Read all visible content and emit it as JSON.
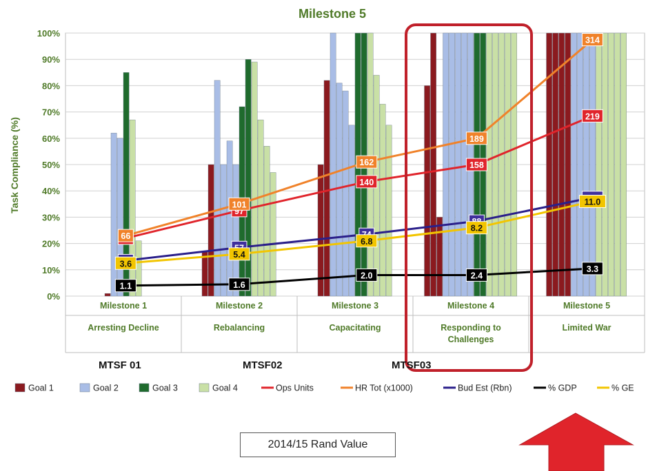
{
  "chart_data": {
    "type": "bar",
    "title": "Milestone 5",
    "ylabel": "Task Compliance (%)",
    "ylim": [
      0,
      100
    ],
    "yticks": [
      "0%",
      "10%",
      "20%",
      "30%",
      "40%",
      "50%",
      "60%",
      "70%",
      "80%",
      "90%",
      "100%"
    ],
    "grid": true,
    "legend_position": "bottom",
    "categories": [
      {
        "name": "Milestone 1",
        "sub": "Arresting Decline"
      },
      {
        "name": "Milestone 2",
        "sub": "Rebalancing"
      },
      {
        "name": "Milestone 3",
        "sub": "Capacitating"
      },
      {
        "name": "Milestone 4",
        "sub": "Responding to Challenges"
      },
      {
        "name": "Milestone 5",
        "sub": "Limited War"
      }
    ],
    "bar_series": [
      {
        "name": "Goal 1",
        "color": "#8b1a1f",
        "values": [
          [
            1
          ],
          [
            17,
            50
          ],
          [
            50,
            82
          ],
          [
            80,
            100,
            30
          ],
          [
            100,
            100,
            100,
            100
          ]
        ]
      },
      {
        "name": "Goal 2",
        "color": "#a9bde6",
        "values": [
          [
            62,
            60
          ],
          [
            82,
            50,
            59,
            50
          ],
          [
            100,
            81,
            78,
            65
          ],
          [
            100,
            100,
            100,
            100,
            100
          ],
          [
            100,
            100,
            100,
            100
          ]
        ]
      },
      {
        "name": "Goal 3",
        "color": "#1f6b2d",
        "values": [
          [
            85
          ],
          [
            72,
            90
          ],
          [
            100,
            100
          ],
          [
            100,
            100
          ],
          []
        ]
      },
      {
        "name": "Goal 4",
        "color": "#c9e0a6",
        "values": [
          [
            67,
            21
          ],
          [
            89,
            67,
            57,
            47
          ],
          [
            100,
            84,
            73,
            65
          ],
          [
            100,
            100,
            100,
            100,
            100
          ],
          [
            100,
            100,
            100,
            100,
            100
          ]
        ]
      }
    ],
    "line_series": [
      {
        "name": "Ops Units",
        "color": "#e0242b",
        "label_color": "#e0242b",
        "values": [
          22,
          32.5,
          43.5,
          50,
          68.5
        ],
        "labels": [
          "66",
          "97",
          "140",
          "158",
          "219"
        ]
      },
      {
        "name": "HR Tot (x1000)",
        "color": "#f0822a",
        "label_color": "#f0822a",
        "values": [
          23,
          35,
          51,
          60,
          97.5
        ],
        "labels": [
          "66",
          "101",
          "162",
          "189",
          "314"
        ]
      },
      {
        "name": "Bud Est (Rbn)",
        "color": "#2a1f8a",
        "label_color": "#3f2f9c",
        "values": [
          13.5,
          18.5,
          23.5,
          28.5,
          37.5
        ],
        "labels": [
          "43",
          "57",
          "74",
          "88",
          "116"
        ]
      },
      {
        "name": "% GDP",
        "color": "#000000",
        "label_color": "#000000",
        "values": [
          4,
          4.5,
          8,
          8,
          10.5
        ],
        "labels": [
          "1.1",
          "1.6",
          "2.0",
          "2.4",
          "3.3"
        ]
      },
      {
        "name": "% GE",
        "color": "#f2c500",
        "label_color": "#f2c500",
        "values": [
          12.5,
          16,
          21,
          26,
          36
        ],
        "labels": [
          "3.6",
          "5.4",
          "6.8",
          "8.2",
          "11.0"
        ]
      }
    ],
    "legend": [
      "Goal 1",
      "Goal 2",
      "Goal 3",
      "Goal 4",
      "Ops Units",
      "HR Tot (x1000)",
      "Bud Est (Rbn)",
      "% GDP",
      "% GE"
    ],
    "annotations": {
      "mtsf": [
        "MTSF 01",
        "MTSF02",
        "MTSF03"
      ],
      "value_box": "2014/15 Rand Value",
      "highlight": "Milestone 4",
      "arrow_color": "#e0242b",
      "highlight_color": "#c0202a"
    }
  }
}
